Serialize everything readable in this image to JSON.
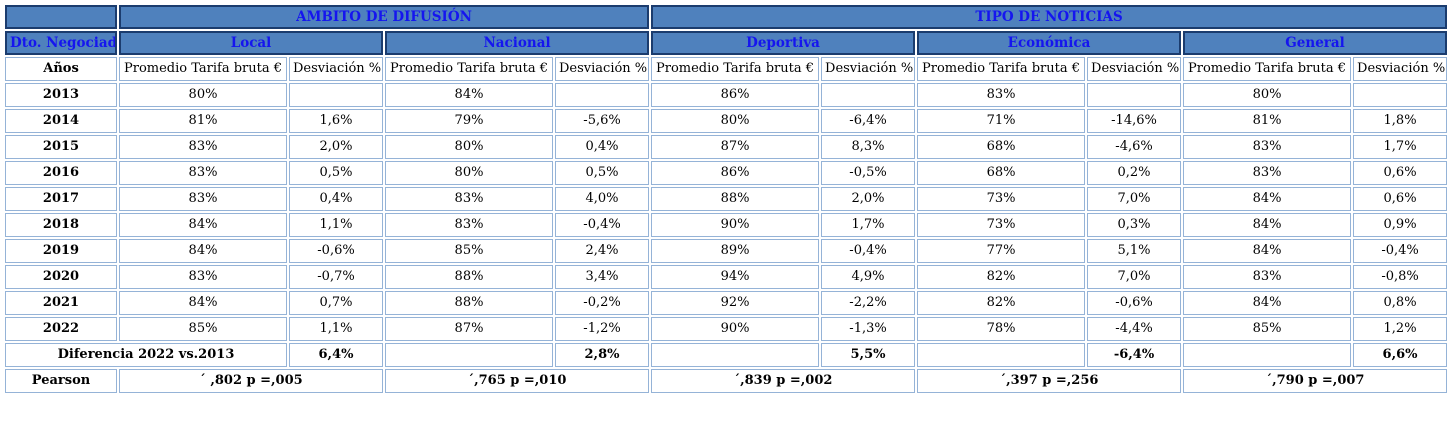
{
  "colors": {
    "header_fill": "#4f81bd",
    "header_border": "#1b3c6e",
    "header_text": "#1515ef",
    "grid_border": "#95b3d7",
    "data_text": "#000000"
  },
  "chart_data": {
    "type": "table",
    "header": {
      "corner": "",
      "groups": [
        {
          "label": "AMBITO DE DIFUSIÓN",
          "span": 4
        },
        {
          "label": "TIPO DE NOTICIAS",
          "span": 6
        }
      ],
      "dto_label": "Dto. Negociado",
      "categories": [
        "Local",
        "Nacional",
        "Deportiva",
        "Económica",
        "General"
      ],
      "years_label": "Años",
      "metric_labels": {
        "promedio": "Promedio Tarifa bruta €",
        "desviacion": "Desviación %"
      }
    },
    "years": [
      {
        "year": "2013",
        "values": [
          "80%",
          "",
          "84%",
          "",
          "86%",
          "",
          "83%",
          "",
          "80%",
          ""
        ]
      },
      {
        "year": "2014",
        "values": [
          "81%",
          "1,6%",
          "79%",
          "-5,6%",
          "80%",
          "-6,4%",
          "71%",
          "-14,6%",
          "81%",
          "1,8%"
        ]
      },
      {
        "year": "2015",
        "values": [
          "83%",
          "2,0%",
          "80%",
          "0,4%",
          "87%",
          "8,3%",
          "68%",
          "-4,6%",
          "83%",
          "1,7%"
        ]
      },
      {
        "year": "2016",
        "values": [
          "83%",
          "0,5%",
          "80%",
          "0,5%",
          "86%",
          "-0,5%",
          "68%",
          "0,2%",
          "83%",
          "0,6%"
        ]
      },
      {
        "year": "2017",
        "values": [
          "83%",
          "0,4%",
          "83%",
          "4,0%",
          "88%",
          "2,0%",
          "73%",
          "7,0%",
          "84%",
          "0,6%"
        ]
      },
      {
        "year": "2018",
        "values": [
          "84%",
          "1,1%",
          "83%",
          "-0,4%",
          "90%",
          "1,7%",
          "73%",
          "0,3%",
          "84%",
          "0,9%"
        ]
      },
      {
        "year": "2019",
        "values": [
          "84%",
          "-0,6%",
          "85%",
          "2,4%",
          "89%",
          "-0,4%",
          "77%",
          "5,1%",
          "84%",
          "-0,4%"
        ]
      },
      {
        "year": "2020",
        "values": [
          "83%",
          "-0,7%",
          "88%",
          "3,4%",
          "94%",
          "4,9%",
          "82%",
          "7,0%",
          "83%",
          "-0,8%"
        ]
      },
      {
        "year": "2021",
        "values": [
          "84%",
          "0,7%",
          "88%",
          "-0,2%",
          "92%",
          "-2,2%",
          "82%",
          "-0,6%",
          "84%",
          "0,8%"
        ]
      },
      {
        "year": "2022",
        "values": [
          "85%",
          "1,1%",
          "87%",
          "-1,2%",
          "90%",
          "-1,3%",
          "78%",
          "-4,4%",
          "85%",
          "1,2%"
        ]
      }
    ],
    "diferencia": {
      "label": "Diferencia 2022 vs.2013",
      "values": [
        "6,4%",
        "",
        "2,8%",
        "",
        "5,5%",
        "",
        "-6,4%",
        "",
        "6,6%"
      ]
    },
    "pearson": {
      "label": "Pearson",
      "values": [
        "´ ,802 p =,005",
        "´,765 p =,010",
        "´,839 p =,002",
        "´,397 p =,256",
        "´,790 p =,007"
      ]
    }
  }
}
